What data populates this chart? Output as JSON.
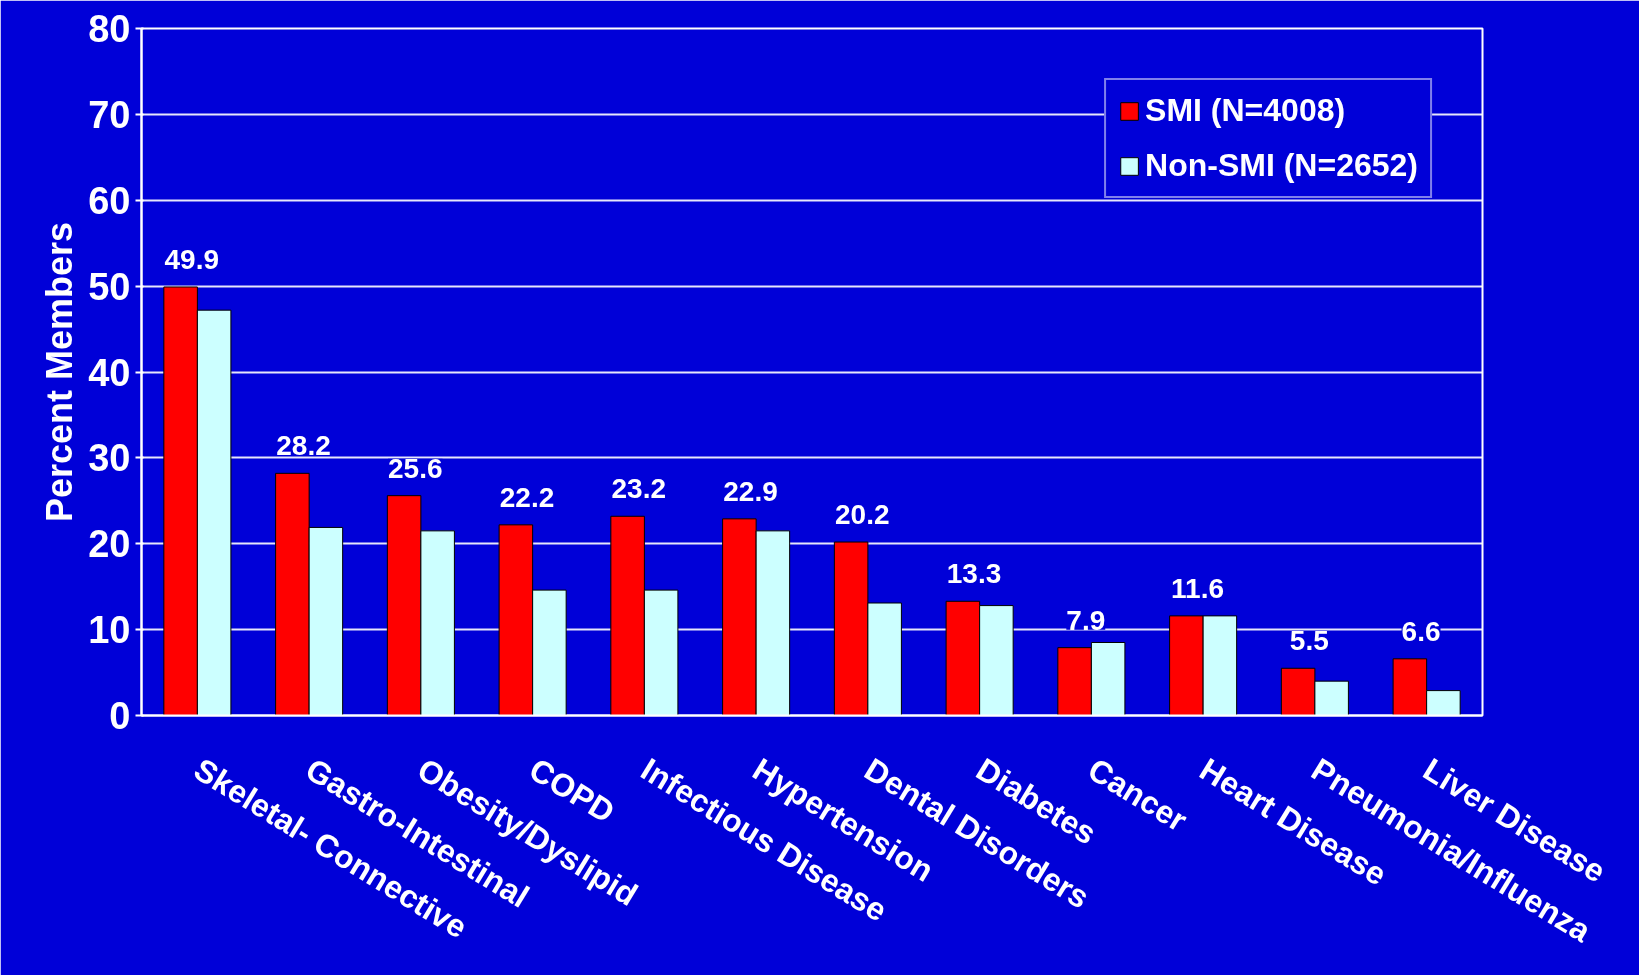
{
  "chart_data": {
    "type": "bar",
    "ylabel": "Percent Members",
    "categories": [
      "Skeletal- Connective",
      "Gastro-Intestinal",
      "Obesity/Dyslipid",
      "COPD",
      "Infectious Disease",
      "Hypertension",
      "Dental Disorders",
      "Diabetes",
      "Cancer",
      "Heart Disease",
      "Pneumonia/Influenza",
      "Liver Disease"
    ],
    "series": [
      {
        "name": "SMI (N=4008)",
        "color": "#ff0000",
        "values": [
          49.9,
          28.2,
          25.6,
          22.2,
          23.2,
          22.9,
          20.2,
          13.3,
          7.9,
          11.6,
          5.5,
          6.6
        ],
        "value_labels": [
          "49.9",
          "28.2",
          "25.6",
          "22.2",
          "23.2",
          "22.9",
          "20.2",
          "13.3",
          "7.9",
          "11.6",
          "5.5",
          "6.6"
        ]
      },
      {
        "name": "Non-SMI (N=2652)",
        "color": "#ccffff",
        "values": [
          47.2,
          21.9,
          21.5,
          14.6,
          14.6,
          21.5,
          13.1,
          12.8,
          8.5,
          11.6,
          4.0,
          2.9
        ]
      }
    ],
    "ylim": [
      0,
      80
    ],
    "yticks": [
      0,
      10,
      20,
      30,
      40,
      50,
      60,
      70,
      80
    ],
    "grid": "y",
    "legend": "top right"
  }
}
